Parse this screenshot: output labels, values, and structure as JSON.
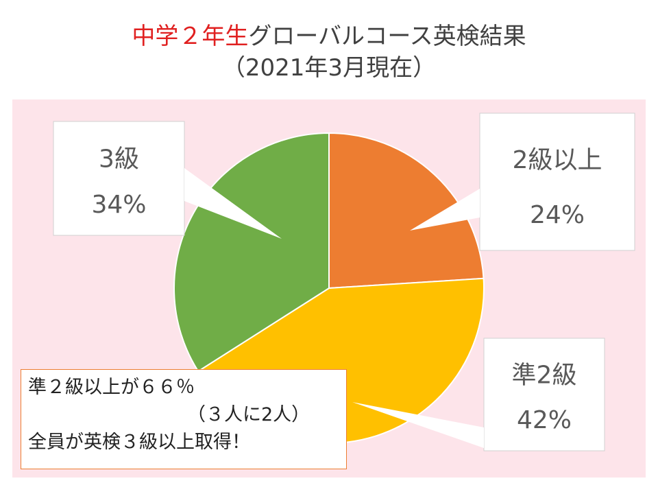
{
  "title": {
    "part_red": "中学２年生",
    "part_black": "グローバルコース英検結果",
    "line2": "（2021年3月現在）"
  },
  "colors": {
    "title_red": "#e02020",
    "background": "#fde4ea",
    "grade2_plus": "#ed7d31",
    "pre_grade2": "#ffc000",
    "grade3": "#70ad47"
  },
  "chart_data": {
    "type": "pie",
    "title": "中学２年生グローバルコース英検結果（2021年3月現在）",
    "categories": [
      "2級以上",
      "準2級",
      "3級"
    ],
    "values": [
      24,
      42,
      34
    ],
    "value_labels": [
      "24%",
      "42%",
      "34%"
    ],
    "unit": "%",
    "start": "12 o'clock, clockwise",
    "legend": "none (data callouts)"
  },
  "note": {
    "line1": "準２級以上が６６％",
    "line2": "（３人に2人）",
    "line3": "全員が英検３級以上取得！"
  }
}
